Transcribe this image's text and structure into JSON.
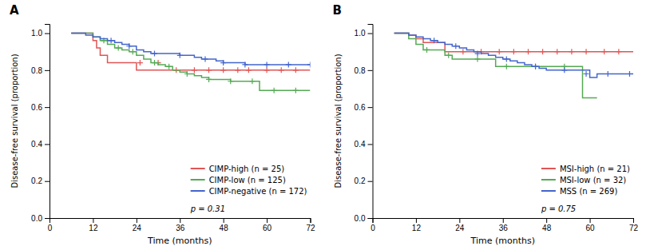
{
  "chart_data": [
    {
      "type": "step",
      "title": "A",
      "xlabel": "Time (months)",
      "ylabel": "Disease-free survival (proportion)",
      "xlim": [
        0,
        72
      ],
      "ylim": [
        0.0,
        1.05
      ],
      "xticks": [
        0,
        12,
        24,
        36,
        48,
        60,
        72
      ],
      "yticks": [
        {
          "value": 0.0,
          "label": "0.0"
        },
        0.2,
        0.4,
        0.6,
        0.8,
        {
          "value": 1.0,
          "label": "1.0"
        }
      ],
      "legend": "lower right",
      "annotation": "p = 0.31",
      "series": [
        {
          "name": "CIMP-high (n = 25)",
          "color": "#e05555",
          "marker": "plus",
          "x": [
            6,
            8,
            10,
            12,
            13,
            14,
            16,
            18,
            20,
            22,
            24,
            72
          ],
          "values": [
            1.0,
            1.0,
            1.0,
            0.96,
            0.92,
            0.88,
            0.84,
            0.84,
            0.84,
            0.84,
            0.8,
            0.8
          ],
          "censors_x": [
            25,
            30,
            35,
            40,
            44,
            48,
            52,
            55,
            60,
            64,
            68
          ],
          "censors_y": [
            0.84,
            0.84,
            0.8,
            0.8,
            0.8,
            0.8,
            0.8,
            0.8,
            0.8,
            0.8,
            0.8
          ]
        },
        {
          "name": "CIMP-low (n = 125)",
          "color": "#55aa55",
          "marker": "plus",
          "x": [
            6,
            8,
            10,
            12,
            14,
            16,
            18,
            20,
            22,
            24,
            26,
            28,
            30,
            32,
            34,
            36,
            38,
            40,
            42,
            44,
            46,
            48,
            50,
            52,
            54,
            56,
            58,
            60,
            72
          ],
          "values": [
            1.0,
            1.0,
            1.0,
            0.98,
            0.96,
            0.94,
            0.92,
            0.91,
            0.9,
            0.88,
            0.86,
            0.84,
            0.83,
            0.82,
            0.8,
            0.79,
            0.78,
            0.77,
            0.76,
            0.75,
            0.75,
            0.75,
            0.74,
            0.74,
            0.74,
            0.74,
            0.69,
            0.69,
            0.69
          ],
          "censors_x": [
            15,
            19,
            23,
            29,
            33,
            38,
            44,
            50,
            56,
            62,
            68
          ],
          "censors_y": [
            0.96,
            0.92,
            0.9,
            0.84,
            0.82,
            0.78,
            0.75,
            0.74,
            0.74,
            0.69,
            0.69
          ]
        },
        {
          "name": "CIMP-negative (n = 172)",
          "color": "#4466cc",
          "marker": "plus",
          "x": [
            6,
            8,
            10,
            12,
            14,
            16,
            18,
            20,
            22,
            24,
            26,
            28,
            30,
            32,
            34,
            36,
            38,
            40,
            42,
            44,
            46,
            48,
            50,
            52,
            54,
            56,
            58,
            60,
            62,
            64,
            66,
            68,
            70,
            72
          ],
          "values": [
            1.0,
            1.0,
            0.99,
            0.98,
            0.97,
            0.96,
            0.95,
            0.94,
            0.93,
            0.91,
            0.9,
            0.89,
            0.89,
            0.89,
            0.89,
            0.88,
            0.88,
            0.87,
            0.86,
            0.86,
            0.85,
            0.84,
            0.84,
            0.84,
            0.83,
            0.83,
            0.83,
            0.83,
            0.83,
            0.83,
            0.83,
            0.83,
            0.83,
            0.83
          ],
          "censors_x": [
            17,
            22,
            29,
            36,
            43,
            48,
            54,
            60,
            66,
            72
          ],
          "censors_y": [
            0.96,
            0.93,
            0.89,
            0.88,
            0.86,
            0.84,
            0.83,
            0.83,
            0.83,
            0.83
          ]
        }
      ]
    },
    {
      "type": "step",
      "title": "B",
      "xlabel": "Time (months)",
      "ylabel": "Disease-free survival (proportion)",
      "xlim": [
        0,
        72
      ],
      "ylim": [
        0.0,
        1.05
      ],
      "xticks": [
        0,
        12,
        24,
        36,
        48,
        60,
        72
      ],
      "yticks": [
        {
          "value": 0.0,
          "label": "0.0"
        },
        0.2,
        0.4,
        0.6,
        0.8,
        {
          "value": 1.0,
          "label": "1.0"
        }
      ],
      "legend": "lower right",
      "annotation": "p = 0.75",
      "series": [
        {
          "name": "MSI-high (n = 21)",
          "color": "#e05555",
          "marker": "plus",
          "x": [
            6,
            8,
            10,
            12,
            14,
            16,
            18,
            20,
            22,
            24,
            72
          ],
          "values": [
            1.0,
            1.0,
            0.99,
            0.97,
            0.95,
            0.95,
            0.95,
            0.9,
            0.9,
            0.9,
            0.9
          ],
          "censors_x": [
            25,
            30,
            35,
            39,
            43,
            47,
            51,
            55,
            59,
            64,
            68
          ],
          "censors_y": [
            0.9,
            0.9,
            0.9,
            0.9,
            0.9,
            0.9,
            0.9,
            0.9,
            0.9,
            0.9,
            0.9
          ]
        },
        {
          "name": "MSI-low (n = 32)",
          "color": "#55aa55",
          "marker": "plus",
          "x": [
            6,
            8,
            10,
            12,
            14,
            16,
            18,
            20,
            22,
            24,
            26,
            28,
            30,
            32,
            34,
            36,
            38,
            40,
            42,
            44,
            46,
            48,
            50,
            52,
            54,
            56,
            58,
            60,
            62
          ],
          "values": [
            1.0,
            1.0,
            0.97,
            0.94,
            0.91,
            0.91,
            0.91,
            0.88,
            0.86,
            0.86,
            0.86,
            0.86,
            0.86,
            0.86,
            0.82,
            0.82,
            0.82,
            0.82,
            0.82,
            0.82,
            0.82,
            0.82,
            0.82,
            0.82,
            0.82,
            0.82,
            0.65,
            0.65,
            0.65
          ],
          "censors_x": [
            15,
            21,
            29,
            37,
            45,
            53
          ],
          "censors_y": [
            0.91,
            0.88,
            0.86,
            0.82,
            0.82,
            0.82
          ]
        },
        {
          "name": "MSS (n = 269)",
          "color": "#4466cc",
          "marker": "plus",
          "x": [
            6,
            8,
            10,
            12,
            14,
            16,
            18,
            20,
            22,
            24,
            26,
            28,
            30,
            32,
            34,
            36,
            38,
            40,
            42,
            44,
            46,
            48,
            50,
            52,
            54,
            56,
            58,
            60,
            62,
            64,
            66,
            68,
            70,
            72
          ],
          "values": [
            1.0,
            1.0,
            0.99,
            0.98,
            0.97,
            0.96,
            0.95,
            0.94,
            0.93,
            0.92,
            0.91,
            0.9,
            0.89,
            0.88,
            0.87,
            0.86,
            0.85,
            0.84,
            0.83,
            0.82,
            0.81,
            0.8,
            0.8,
            0.8,
            0.8,
            0.8,
            0.8,
            0.76,
            0.78,
            0.78,
            0.78,
            0.78,
            0.78,
            0.78
          ],
          "censors_x": [
            17,
            23,
            29,
            37,
            45,
            53,
            59,
            65,
            71
          ],
          "censors_y": [
            0.96,
            0.93,
            0.89,
            0.86,
            0.82,
            0.8,
            0.78,
            0.78,
            0.78
          ]
        }
      ]
    }
  ]
}
